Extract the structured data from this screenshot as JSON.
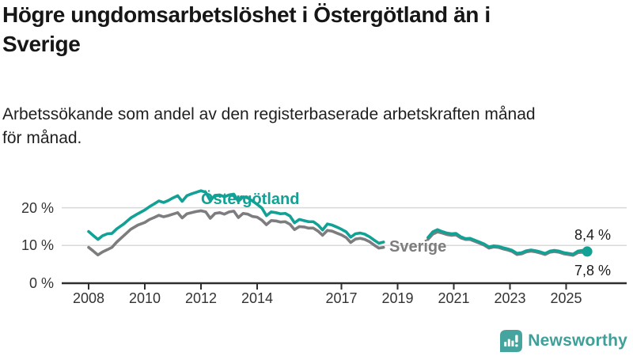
{
  "page": {
    "title": "Högre ungdomsarbetslöshet i Östergötland än i Sverige",
    "subtitle": "Arbetssökande som andel av den registerbaserade arbetskraften månad för månad."
  },
  "footer": {
    "brand": "Newsworthy",
    "logo_icon": "speech-bubble-bar-chart-exclamation"
  },
  "colors": {
    "accent_teal": "#12a195",
    "series_gray": "#7d7d80",
    "logo_teal": "#45a49d",
    "grid": "#d9d9d9",
    "axis": "#2e2e2e",
    "tick_text": "#333333",
    "title_text": "#161616"
  },
  "chart_data": {
    "type": "line",
    "title": "Högre ungdomsarbetslöshet i Östergötland än i Sverige",
    "subtitle": "Arbetssökande som andel av den registerbaserade arbetskraften månad för månad.",
    "unit": "%",
    "xlim": [
      2007.8,
      2026.3
    ],
    "ylim": [
      0,
      26
    ],
    "grid": "horizontal",
    "legend_position": "inline-labels",
    "x_ticks": [
      2008,
      2010,
      2012,
      2014,
      2017,
      2019,
      2021,
      2023,
      2025
    ],
    "y_ticks": [
      {
        "value": 0,
        "label": "0 %"
      },
      {
        "value": 10,
        "label": "10 %"
      },
      {
        "value": 20,
        "label": "20 %"
      }
    ],
    "data_gap": {
      "from": 2018.5,
      "to": 2020.08
    },
    "series": [
      {
        "name": "Östergötland",
        "color": "#12a195",
        "end_label": "8,4 %",
        "end_value": 8.4,
        "end_dot": true,
        "segments": [
          [
            [
              2008.0,
              13.7
            ],
            [
              2008.17,
              12.6
            ],
            [
              2008.33,
              11.6
            ],
            [
              2008.5,
              12.6
            ],
            [
              2008.67,
              13.1
            ],
            [
              2008.83,
              13.2
            ],
            [
              2009.0,
              14.4
            ],
            [
              2009.25,
              15.7
            ],
            [
              2009.5,
              17.3
            ],
            [
              2009.75,
              18.4
            ],
            [
              2010.0,
              19.4
            ],
            [
              2010.17,
              20.3
            ],
            [
              2010.33,
              21.0
            ],
            [
              2010.5,
              21.8
            ],
            [
              2010.67,
              21.4
            ],
            [
              2010.83,
              21.9
            ],
            [
              2011.0,
              22.6
            ],
            [
              2011.17,
              23.2
            ],
            [
              2011.33,
              21.7
            ],
            [
              2011.5,
              23.2
            ],
            [
              2011.67,
              23.7
            ],
            [
              2011.83,
              24.1
            ],
            [
              2012.0,
              24.5
            ],
            [
              2012.17,
              24.1
            ],
            [
              2012.33,
              21.9
            ],
            [
              2012.5,
              23.3
            ],
            [
              2012.67,
              23.4
            ],
            [
              2012.83,
              22.9
            ],
            [
              2013.0,
              23.4
            ],
            [
              2013.17,
              23.6
            ],
            [
              2013.33,
              21.7
            ],
            [
              2013.5,
              22.9
            ],
            [
              2013.67,
              22.6
            ],
            [
              2013.83,
              21.8
            ],
            [
              2014.0,
              20.9
            ],
            [
              2014.17,
              19.9
            ],
            [
              2014.33,
              17.9
            ],
            [
              2014.5,
              18.9
            ],
            [
              2014.67,
              18.7
            ],
            [
              2014.83,
              18.4
            ],
            [
              2015.0,
              18.5
            ],
            [
              2015.17,
              17.8
            ],
            [
              2015.33,
              16.0
            ],
            [
              2015.5,
              16.9
            ],
            [
              2015.67,
              16.6
            ],
            [
              2015.83,
              16.3
            ],
            [
              2016.0,
              16.3
            ],
            [
              2016.17,
              15.4
            ],
            [
              2016.33,
              14.1
            ],
            [
              2016.5,
              15.7
            ],
            [
              2016.67,
              15.4
            ],
            [
              2016.83,
              14.9
            ],
            [
              2017.0,
              14.3
            ],
            [
              2017.17,
              13.6
            ],
            [
              2017.33,
              12.2
            ],
            [
              2017.5,
              13.1
            ],
            [
              2017.67,
              13.3
            ],
            [
              2017.83,
              13.0
            ],
            [
              2018.0,
              12.3
            ],
            [
              2018.17,
              11.4
            ],
            [
              2018.33,
              10.6
            ],
            [
              2018.5,
              10.9
            ]
          ],
          [
            [
              2020.08,
              12.1
            ],
            [
              2020.25,
              13.6
            ],
            [
              2020.42,
              14.2
            ],
            [
              2020.58,
              13.7
            ],
            [
              2020.75,
              13.3
            ],
            [
              2020.92,
              13.1
            ],
            [
              2021.08,
              13.2
            ],
            [
              2021.25,
              12.3
            ],
            [
              2021.42,
              11.8
            ],
            [
              2021.58,
              11.9
            ],
            [
              2021.75,
              11.4
            ],
            [
              2021.92,
              10.9
            ],
            [
              2022.08,
              10.4
            ],
            [
              2022.25,
              9.6
            ],
            [
              2022.42,
              9.9
            ],
            [
              2022.58,
              9.8
            ],
            [
              2022.75,
              9.4
            ],
            [
              2022.92,
              9.1
            ],
            [
              2023.08,
              8.7
            ],
            [
              2023.25,
              7.9
            ],
            [
              2023.42,
              8.1
            ],
            [
              2023.58,
              8.6
            ],
            [
              2023.75,
              8.8
            ],
            [
              2023.92,
              8.6
            ],
            [
              2024.08,
              8.3
            ],
            [
              2024.25,
              7.9
            ],
            [
              2024.42,
              8.5
            ],
            [
              2024.58,
              8.7
            ],
            [
              2024.75,
              8.5
            ],
            [
              2024.92,
              8.1
            ],
            [
              2025.08,
              7.9
            ],
            [
              2025.25,
              7.7
            ],
            [
              2025.42,
              8.5
            ],
            [
              2025.58,
              8.7
            ],
            [
              2025.75,
              8.4
            ]
          ]
        ]
      },
      {
        "name": "Sverige",
        "color": "#7d7d80",
        "end_label": "7,8 %",
        "end_value": 7.8,
        "end_dot": false,
        "segments": [
          [
            [
              2008.0,
              9.5
            ],
            [
              2008.17,
              8.5
            ],
            [
              2008.33,
              7.5
            ],
            [
              2008.5,
              8.3
            ],
            [
              2008.67,
              8.9
            ],
            [
              2008.83,
              9.5
            ],
            [
              2009.0,
              10.9
            ],
            [
              2009.25,
              12.6
            ],
            [
              2009.5,
              14.3
            ],
            [
              2009.75,
              15.4
            ],
            [
              2010.0,
              16.1
            ],
            [
              2010.17,
              16.9
            ],
            [
              2010.33,
              17.4
            ],
            [
              2010.5,
              18.0
            ],
            [
              2010.67,
              17.6
            ],
            [
              2010.83,
              17.9
            ],
            [
              2011.0,
              18.3
            ],
            [
              2011.17,
              18.7
            ],
            [
              2011.33,
              17.3
            ],
            [
              2011.5,
              18.4
            ],
            [
              2011.67,
              18.7
            ],
            [
              2011.83,
              19.0
            ],
            [
              2012.0,
              19.2
            ],
            [
              2012.17,
              18.9
            ],
            [
              2012.33,
              17.2
            ],
            [
              2012.5,
              18.5
            ],
            [
              2012.67,
              18.7
            ],
            [
              2012.83,
              18.3
            ],
            [
              2013.0,
              18.9
            ],
            [
              2013.17,
              19.1
            ],
            [
              2013.33,
              17.4
            ],
            [
              2013.5,
              18.5
            ],
            [
              2013.67,
              18.3
            ],
            [
              2013.83,
              17.7
            ],
            [
              2014.0,
              17.5
            ],
            [
              2014.17,
              16.7
            ],
            [
              2014.33,
              15.5
            ],
            [
              2014.5,
              16.6
            ],
            [
              2014.67,
              16.5
            ],
            [
              2014.83,
              16.2
            ],
            [
              2015.0,
              16.3
            ],
            [
              2015.17,
              15.6
            ],
            [
              2015.33,
              14.2
            ],
            [
              2015.5,
              15.0
            ],
            [
              2015.67,
              14.9
            ],
            [
              2015.83,
              14.6
            ],
            [
              2016.0,
              14.6
            ],
            [
              2016.17,
              13.8
            ],
            [
              2016.33,
              12.7
            ],
            [
              2016.5,
              14.0
            ],
            [
              2016.67,
              13.8
            ],
            [
              2016.83,
              13.3
            ],
            [
              2017.0,
              12.8
            ],
            [
              2017.17,
              12.1
            ],
            [
              2017.33,
              10.8
            ],
            [
              2017.5,
              11.7
            ],
            [
              2017.67,
              11.9
            ],
            [
              2017.83,
              11.6
            ],
            [
              2018.0,
              11.0
            ],
            [
              2018.17,
              10.1
            ],
            [
              2018.33,
              9.3
            ],
            [
              2018.5,
              9.5
            ]
          ],
          [
            [
              2020.08,
              11.6
            ],
            [
              2020.25,
              13.0
            ],
            [
              2020.42,
              13.6
            ],
            [
              2020.58,
              13.3
            ],
            [
              2020.75,
              12.9
            ],
            [
              2020.92,
              12.7
            ],
            [
              2021.08,
              12.8
            ],
            [
              2021.25,
              12.0
            ],
            [
              2021.42,
              11.6
            ],
            [
              2021.58,
              11.6
            ],
            [
              2021.75,
              11.1
            ],
            [
              2021.92,
              10.6
            ],
            [
              2022.08,
              10.1
            ],
            [
              2022.25,
              9.3
            ],
            [
              2022.42,
              9.6
            ],
            [
              2022.58,
              9.5
            ],
            [
              2022.75,
              9.1
            ],
            [
              2022.92,
              8.8
            ],
            [
              2023.08,
              8.4
            ],
            [
              2023.25,
              7.6
            ],
            [
              2023.42,
              7.8
            ],
            [
              2023.58,
              8.3
            ],
            [
              2023.75,
              8.5
            ],
            [
              2023.92,
              8.3
            ],
            [
              2024.08,
              8.0
            ],
            [
              2024.25,
              7.6
            ],
            [
              2024.42,
              8.2
            ],
            [
              2024.58,
              8.4
            ],
            [
              2024.75,
              8.2
            ],
            [
              2024.92,
              7.8
            ],
            [
              2025.08,
              7.6
            ],
            [
              2025.25,
              7.4
            ],
            [
              2025.42,
              8.1
            ],
            [
              2025.58,
              8.2
            ],
            [
              2025.75,
              7.8
            ]
          ]
        ]
      }
    ]
  }
}
